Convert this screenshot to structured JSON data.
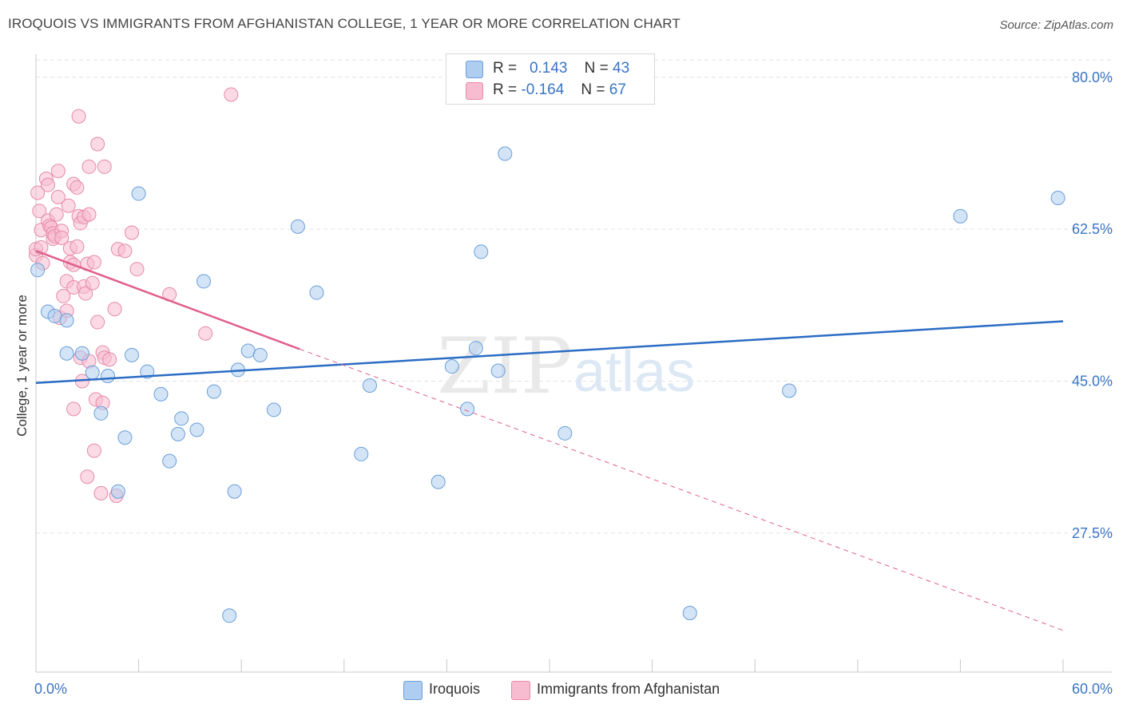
{
  "title": "IROQUOIS VS IMMIGRANTS FROM AFGHANISTAN COLLEGE, 1 YEAR OR MORE CORRELATION CHART",
  "source": "Source: ZipAtlas.com",
  "watermark": {
    "zip": "ZIP",
    "atlas": "atlas"
  },
  "legend": {
    "r_label": "R =",
    "n_label": "N =",
    "rows": [
      {
        "r": "0.143",
        "n": "43",
        "color": "#aecdf0"
      },
      {
        "r": "-0.164",
        "n": "67",
        "color": "#f8bcd0"
      }
    ]
  },
  "bottom_legend": [
    "Iroquois",
    "Immigrants from Afghanistan"
  ],
  "colors": {
    "blue_fill": "#aecdf0",
    "blue_stroke": "#6a9fd8",
    "blue_line": "#2b6cc4",
    "pink_fill": "#f8bcd0",
    "pink_stroke": "#e68aa8",
    "pink_line": "#e0608c",
    "grid": "#e2e2e2",
    "axis_label": "#3a74c4"
  },
  "chart_data": {
    "type": "scatter",
    "title": "IROQUOIS VS IMMIGRANTS FROM AFGHANISTAN COLLEGE, 1 YEAR OR MORE CORRELATION CHART",
    "xlabel": "",
    "ylabel": "College, 1 year or more",
    "xlim": [
      0,
      60
    ],
    "ylim": [
      11.5,
      82
    ],
    "x_tick_labels": [
      "0.0%",
      "60.0%"
    ],
    "y_ticks": [
      27.5,
      45.0,
      62.5,
      80.0
    ],
    "y_tick_labels": [
      "27.5%",
      "45.0%",
      "62.5%",
      "80.0%"
    ],
    "grid": true,
    "legend_position": "top-center",
    "series": [
      {
        "name": "Iroquois",
        "r": 0.143,
        "n": 43,
        "trend": {
          "x": [
            0,
            60
          ],
          "y": [
            44.8,
            51.9
          ],
          "dashed_extension": false
        },
        "points": [
          [
            0.1,
            57.8
          ],
          [
            0.7,
            53.0
          ],
          [
            1.1,
            52.5
          ],
          [
            1.8,
            52.0
          ],
          [
            1.8,
            48.2
          ],
          [
            2.7,
            48.2
          ],
          [
            3.3,
            46.0
          ],
          [
            3.8,
            41.3
          ],
          [
            4.2,
            45.6
          ],
          [
            4.8,
            32.3
          ],
          [
            5.2,
            38.5
          ],
          [
            5.6,
            48.0
          ],
          [
            6.0,
            66.6
          ],
          [
            6.5,
            46.1
          ],
          [
            7.3,
            43.5
          ],
          [
            7.8,
            35.8
          ],
          [
            8.3,
            38.9
          ],
          [
            8.5,
            40.7
          ],
          [
            9.4,
            39.4
          ],
          [
            9.8,
            56.5
          ],
          [
            10.4,
            43.8
          ],
          [
            11.3,
            18.0
          ],
          [
            11.6,
            32.3
          ],
          [
            11.8,
            46.3
          ],
          [
            12.4,
            48.5
          ],
          [
            13.1,
            48.0
          ],
          [
            13.9,
            41.7
          ],
          [
            15.3,
            62.8
          ],
          [
            16.4,
            55.2
          ],
          [
            19.0,
            36.6
          ],
          [
            19.5,
            44.5
          ],
          [
            23.5,
            33.4
          ],
          [
            24.3,
            46.7
          ],
          [
            25.2,
            41.8
          ],
          [
            25.7,
            48.8
          ],
          [
            26.0,
            59.9
          ],
          [
            27.0,
            46.2
          ],
          [
            27.4,
            71.2
          ],
          [
            30.9,
            39.0
          ],
          [
            38.2,
            18.3
          ],
          [
            44.0,
            43.9
          ],
          [
            54.0,
            64.0
          ],
          [
            59.7,
            66.1
          ]
        ]
      },
      {
        "name": "Immigrants from Afghanistan",
        "r": -0.164,
        "n": 67,
        "trend": {
          "x": [
            0,
            15.4,
            60
          ],
          "y": [
            60.0,
            48.7,
            16.3
          ],
          "solid_until_x": 15.4
        },
        "points": [
          [
            0.0,
            59.5
          ],
          [
            0.0,
            60.2
          ],
          [
            0.1,
            66.7
          ],
          [
            0.2,
            64.6
          ],
          [
            0.3,
            62.4
          ],
          [
            0.3,
            60.4
          ],
          [
            0.4,
            58.6
          ],
          [
            0.6,
            68.3
          ],
          [
            0.7,
            67.6
          ],
          [
            0.7,
            63.5
          ],
          [
            0.8,
            62.9
          ],
          [
            0.9,
            62.7
          ],
          [
            1.0,
            61.4
          ],
          [
            1.0,
            62.0
          ],
          [
            1.1,
            61.7
          ],
          [
            1.2,
            64.2
          ],
          [
            1.3,
            69.2
          ],
          [
            1.3,
            66.2
          ],
          [
            1.4,
            52.3
          ],
          [
            1.5,
            62.3
          ],
          [
            1.5,
            61.5
          ],
          [
            1.6,
            54.8
          ],
          [
            1.8,
            56.5
          ],
          [
            1.8,
            53.1
          ],
          [
            1.9,
            65.2
          ],
          [
            2.0,
            58.7
          ],
          [
            2.0,
            60.3
          ],
          [
            2.2,
            58.4
          ],
          [
            2.2,
            55.8
          ],
          [
            2.2,
            41.8
          ],
          [
            2.2,
            67.7
          ],
          [
            2.4,
            67.3
          ],
          [
            2.4,
            60.5
          ],
          [
            2.5,
            64.0
          ],
          [
            2.5,
            75.5
          ],
          [
            2.6,
            63.2
          ],
          [
            2.6,
            47.7
          ],
          [
            2.7,
            45.0
          ],
          [
            2.8,
            63.9
          ],
          [
            2.8,
            55.9
          ],
          [
            2.9,
            55.1
          ],
          [
            3.0,
            34.0
          ],
          [
            3.0,
            58.5
          ],
          [
            3.1,
            64.2
          ],
          [
            3.1,
            69.7
          ],
          [
            3.1,
            47.3
          ],
          [
            3.3,
            56.3
          ],
          [
            3.4,
            37.0
          ],
          [
            3.4,
            58.7
          ],
          [
            3.5,
            42.9
          ],
          [
            3.6,
            51.8
          ],
          [
            3.6,
            72.3
          ],
          [
            3.8,
            32.1
          ],
          [
            3.9,
            42.5
          ],
          [
            3.9,
            48.3
          ],
          [
            4.0,
            69.7
          ],
          [
            4.0,
            47.7
          ],
          [
            4.3,
            47.5
          ],
          [
            4.6,
            53.3
          ],
          [
            4.7,
            31.8
          ],
          [
            4.8,
            60.2
          ],
          [
            5.2,
            60.0
          ],
          [
            5.6,
            62.1
          ],
          [
            5.9,
            57.9
          ],
          [
            7.8,
            55.0
          ],
          [
            9.9,
            50.5
          ],
          [
            11.4,
            78.0
          ]
        ]
      }
    ]
  }
}
